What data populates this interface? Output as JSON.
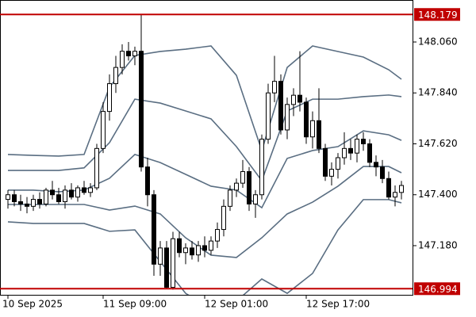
{
  "chart_data": {
    "type": "candlestick",
    "categories": [
      "10 Sep 2025",
      null,
      null,
      null,
      null,
      null,
      null,
      null,
      null,
      null,
      null,
      null,
      null,
      null,
      null,
      "11 Sep 09:00",
      null,
      null,
      null,
      null,
      null,
      null,
      null,
      null,
      null,
      null,
      null,
      null,
      null,
      null,
      null,
      "12 Sep 01:00",
      null,
      null,
      null,
      null,
      null,
      null,
      null,
      null,
      null,
      null,
      null,
      null,
      null,
      null,
      null,
      "12 Sep 17:00",
      null,
      null,
      null,
      null,
      null,
      null,
      null,
      null,
      null,
      null,
      null,
      null,
      null,
      null,
      null
    ],
    "open": [
      147.38,
      147.4,
      147.37,
      147.36,
      147.35,
      147.38,
      147.36,
      147.42,
      147.4,
      147.37,
      147.42,
      147.39,
      147.43,
      147.41,
      147.43,
      147.6,
      147.76,
      147.88,
      147.95,
      148.02,
      148.0,
      148.02,
      147.52,
      147.4,
      147.1,
      147.17,
      147.0,
      147.21,
      147.15,
      147.17,
      147.14,
      147.18,
      147.16,
      147.2,
      147.25,
      147.35,
      147.42,
      147.45,
      147.5,
      147.36,
      147.4,
      147.64,
      147.84,
      147.89,
      147.68,
      147.79,
      147.83,
      147.8,
      147.65,
      147.72,
      147.6,
      147.48,
      147.51,
      147.56,
      147.6,
      147.58,
      147.64,
      147.62,
      147.54,
      147.52,
      147.47,
      147.39,
      147.41
    ],
    "high": [
      147.42,
      147.42,
      147.4,
      147.39,
      147.4,
      147.41,
      147.43,
      147.46,
      147.43,
      147.44,
      147.45,
      147.44,
      147.46,
      147.45,
      147.62,
      147.8,
      147.92,
      148.0,
      148.05,
      148.06,
      148.04,
      148.179,
      147.56,
      147.42,
      147.2,
      147.2,
      147.24,
      147.24,
      147.19,
      147.2,
      147.2,
      147.22,
      147.22,
      147.28,
      147.38,
      147.44,
      147.47,
      147.55,
      147.52,
      147.42,
      147.66,
      147.88,
      148.0,
      147.92,
      147.82,
      147.86,
      148.02,
      147.82,
      147.76,
      147.86,
      147.62,
      147.54,
      147.58,
      147.67,
      147.64,
      147.66,
      147.67,
      147.64,
      147.57,
      147.55,
      147.5,
      147.44,
      147.46
    ],
    "low": [
      147.34,
      147.35,
      147.33,
      147.32,
      147.33,
      147.34,
      147.35,
      147.38,
      147.36,
      147.34,
      147.38,
      147.37,
      147.4,
      147.39,
      147.42,
      147.58,
      147.72,
      147.84,
      147.92,
      147.98,
      147.96,
      147.5,
      147.35,
      147.05,
      147.05,
      146.994,
      146.99,
      147.13,
      147.1,
      147.12,
      147.11,
      147.13,
      147.14,
      147.17,
      147.22,
      147.33,
      147.39,
      147.43,
      147.33,
      147.3,
      147.38,
      147.62,
      147.8,
      147.66,
      147.64,
      147.74,
      147.76,
      147.62,
      147.6,
      147.58,
      147.46,
      147.44,
      147.47,
      147.53,
      147.55,
      147.54,
      147.59,
      147.52,
      147.48,
      147.45,
      147.38,
      147.35,
      147.38
    ],
    "close": [
      147.4,
      147.37,
      147.36,
      147.35,
      147.38,
      147.36,
      147.42,
      147.4,
      147.37,
      147.42,
      147.39,
      147.43,
      147.41,
      147.43,
      147.6,
      147.76,
      147.88,
      147.95,
      148.02,
      148.0,
      148.02,
      147.52,
      147.4,
      147.1,
      147.17,
      147.0,
      147.21,
      147.15,
      147.17,
      147.14,
      147.18,
      147.16,
      147.2,
      147.25,
      147.35,
      147.42,
      147.45,
      147.5,
      147.36,
      147.4,
      147.64,
      147.84,
      147.89,
      147.68,
      147.79,
      147.83,
      147.8,
      147.65,
      147.72,
      147.6,
      147.48,
      147.51,
      147.56,
      147.6,
      147.58,
      147.64,
      147.62,
      147.54,
      147.52,
      147.47,
      147.39,
      147.41,
      147.44
    ],
    "candle_colors": {
      "up": "#ffffff",
      "down": "#000000",
      "outline": "#000000"
    },
    "bands": {
      "x": [
        0,
        4,
        8,
        12,
        16,
        20,
        24,
        28,
        32,
        36,
        40,
        44,
        48,
        52,
        56,
        60,
        62
      ],
      "color": "#5a6e82",
      "series": [
        {
          "values": [
            147.574,
            147.57,
            147.567,
            147.574,
            147.865,
            148.002,
            148.019,
            148.029,
            148.043,
            147.916,
            147.591,
            147.95,
            148.043,
            148.019,
            147.995,
            147.94,
            147.899
          ]
        },
        {
          "values": [
            147.505,
            147.505,
            147.505,
            147.516,
            147.625,
            147.813,
            147.796,
            147.762,
            147.728,
            147.608,
            147.461,
            147.762,
            147.813,
            147.813,
            147.824,
            147.831,
            147.824
          ]
        },
        {
          "values": [
            147.42,
            147.42,
            147.413,
            147.42,
            147.471,
            147.574,
            147.539,
            147.488,
            147.437,
            147.42,
            147.344,
            147.557,
            147.591,
            147.608,
            147.676,
            147.659,
            147.635
          ]
        },
        {
          "values": [
            147.358,
            147.358,
            147.358,
            147.358,
            147.334,
            147.351,
            147.317,
            147.214,
            147.139,
            147.129,
            147.214,
            147.317,
            147.368,
            147.437,
            147.522,
            147.522,
            147.495
          ]
        },
        {
          "values": [
            147.283,
            147.276,
            147.276,
            147.276,
            147.242,
            147.248,
            147.111,
            146.974,
            146.906,
            146.94,
            147.036,
            146.974,
            147.06,
            147.248,
            147.379,
            147.379,
            147.365
          ]
        }
      ]
    },
    "hlines": {
      "color": "#c00000",
      "values": [
        148.179,
        146.994
      ]
    },
    "ylim": [
      146.9676,
      148.2415
    ],
    "yticks": [
      {
        "value": 148.06,
        "label": "148.060"
      },
      {
        "value": 147.84,
        "label": "147.840"
      },
      {
        "value": 147.62,
        "label": "147.620"
      },
      {
        "value": 147.4,
        "label": "147.400"
      },
      {
        "value": 147.18,
        "label": "147.180"
      }
    ]
  }
}
